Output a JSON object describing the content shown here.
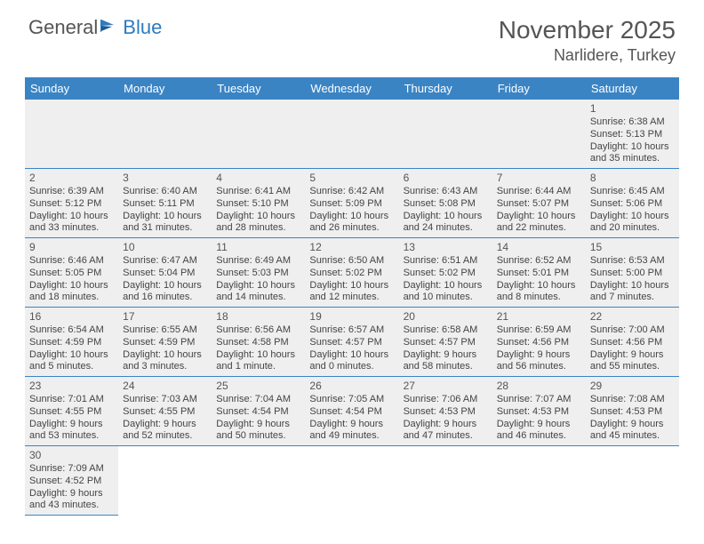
{
  "logo": {
    "textGeneral": "General",
    "textBlue": "Blue"
  },
  "title": "November 2025",
  "location": "Narlidere, Turkey",
  "colors": {
    "headerBlue": "#3b84c4",
    "cellGray": "#efefef",
    "textDark": "#444444",
    "titleGray": "#555555",
    "logoBlue": "#2d7bc0"
  },
  "dayNames": [
    "Sunday",
    "Monday",
    "Tuesday",
    "Wednesday",
    "Thursday",
    "Friday",
    "Saturday"
  ],
  "weeks": [
    [
      {
        "empty": true
      },
      {
        "empty": true
      },
      {
        "empty": true
      },
      {
        "empty": true
      },
      {
        "empty": true
      },
      {
        "empty": true
      },
      {
        "n": "1",
        "sunrise": "Sunrise: 6:38 AM",
        "sunset": "Sunset: 5:13 PM",
        "daylight1": "Daylight: 10 hours",
        "daylight2": "and 35 minutes."
      }
    ],
    [
      {
        "n": "2",
        "sunrise": "Sunrise: 6:39 AM",
        "sunset": "Sunset: 5:12 PM",
        "daylight1": "Daylight: 10 hours",
        "daylight2": "and 33 minutes."
      },
      {
        "n": "3",
        "sunrise": "Sunrise: 6:40 AM",
        "sunset": "Sunset: 5:11 PM",
        "daylight1": "Daylight: 10 hours",
        "daylight2": "and 31 minutes."
      },
      {
        "n": "4",
        "sunrise": "Sunrise: 6:41 AM",
        "sunset": "Sunset: 5:10 PM",
        "daylight1": "Daylight: 10 hours",
        "daylight2": "and 28 minutes."
      },
      {
        "n": "5",
        "sunrise": "Sunrise: 6:42 AM",
        "sunset": "Sunset: 5:09 PM",
        "daylight1": "Daylight: 10 hours",
        "daylight2": "and 26 minutes."
      },
      {
        "n": "6",
        "sunrise": "Sunrise: 6:43 AM",
        "sunset": "Sunset: 5:08 PM",
        "daylight1": "Daylight: 10 hours",
        "daylight2": "and 24 minutes."
      },
      {
        "n": "7",
        "sunrise": "Sunrise: 6:44 AM",
        "sunset": "Sunset: 5:07 PM",
        "daylight1": "Daylight: 10 hours",
        "daylight2": "and 22 minutes."
      },
      {
        "n": "8",
        "sunrise": "Sunrise: 6:45 AM",
        "sunset": "Sunset: 5:06 PM",
        "daylight1": "Daylight: 10 hours",
        "daylight2": "and 20 minutes."
      }
    ],
    [
      {
        "n": "9",
        "sunrise": "Sunrise: 6:46 AM",
        "sunset": "Sunset: 5:05 PM",
        "daylight1": "Daylight: 10 hours",
        "daylight2": "and 18 minutes."
      },
      {
        "n": "10",
        "sunrise": "Sunrise: 6:47 AM",
        "sunset": "Sunset: 5:04 PM",
        "daylight1": "Daylight: 10 hours",
        "daylight2": "and 16 minutes."
      },
      {
        "n": "11",
        "sunrise": "Sunrise: 6:49 AM",
        "sunset": "Sunset: 5:03 PM",
        "daylight1": "Daylight: 10 hours",
        "daylight2": "and 14 minutes."
      },
      {
        "n": "12",
        "sunrise": "Sunrise: 6:50 AM",
        "sunset": "Sunset: 5:02 PM",
        "daylight1": "Daylight: 10 hours",
        "daylight2": "and 12 minutes."
      },
      {
        "n": "13",
        "sunrise": "Sunrise: 6:51 AM",
        "sunset": "Sunset: 5:02 PM",
        "daylight1": "Daylight: 10 hours",
        "daylight2": "and 10 minutes."
      },
      {
        "n": "14",
        "sunrise": "Sunrise: 6:52 AM",
        "sunset": "Sunset: 5:01 PM",
        "daylight1": "Daylight: 10 hours",
        "daylight2": "and 8 minutes."
      },
      {
        "n": "15",
        "sunrise": "Sunrise: 6:53 AM",
        "sunset": "Sunset: 5:00 PM",
        "daylight1": "Daylight: 10 hours",
        "daylight2": "and 7 minutes."
      }
    ],
    [
      {
        "n": "16",
        "sunrise": "Sunrise: 6:54 AM",
        "sunset": "Sunset: 4:59 PM",
        "daylight1": "Daylight: 10 hours",
        "daylight2": "and 5 minutes."
      },
      {
        "n": "17",
        "sunrise": "Sunrise: 6:55 AM",
        "sunset": "Sunset: 4:59 PM",
        "daylight1": "Daylight: 10 hours",
        "daylight2": "and 3 minutes."
      },
      {
        "n": "18",
        "sunrise": "Sunrise: 6:56 AM",
        "sunset": "Sunset: 4:58 PM",
        "daylight1": "Daylight: 10 hours",
        "daylight2": "and 1 minute."
      },
      {
        "n": "19",
        "sunrise": "Sunrise: 6:57 AM",
        "sunset": "Sunset: 4:57 PM",
        "daylight1": "Daylight: 10 hours",
        "daylight2": "and 0 minutes."
      },
      {
        "n": "20",
        "sunrise": "Sunrise: 6:58 AM",
        "sunset": "Sunset: 4:57 PM",
        "daylight1": "Daylight: 9 hours",
        "daylight2": "and 58 minutes."
      },
      {
        "n": "21",
        "sunrise": "Sunrise: 6:59 AM",
        "sunset": "Sunset: 4:56 PM",
        "daylight1": "Daylight: 9 hours",
        "daylight2": "and 56 minutes."
      },
      {
        "n": "22",
        "sunrise": "Sunrise: 7:00 AM",
        "sunset": "Sunset: 4:56 PM",
        "daylight1": "Daylight: 9 hours",
        "daylight2": "and 55 minutes."
      }
    ],
    [
      {
        "n": "23",
        "sunrise": "Sunrise: 7:01 AM",
        "sunset": "Sunset: 4:55 PM",
        "daylight1": "Daylight: 9 hours",
        "daylight2": "and 53 minutes."
      },
      {
        "n": "24",
        "sunrise": "Sunrise: 7:03 AM",
        "sunset": "Sunset: 4:55 PM",
        "daylight1": "Daylight: 9 hours",
        "daylight2": "and 52 minutes."
      },
      {
        "n": "25",
        "sunrise": "Sunrise: 7:04 AM",
        "sunset": "Sunset: 4:54 PM",
        "daylight1": "Daylight: 9 hours",
        "daylight2": "and 50 minutes."
      },
      {
        "n": "26",
        "sunrise": "Sunrise: 7:05 AM",
        "sunset": "Sunset: 4:54 PM",
        "daylight1": "Daylight: 9 hours",
        "daylight2": "and 49 minutes."
      },
      {
        "n": "27",
        "sunrise": "Sunrise: 7:06 AM",
        "sunset": "Sunset: 4:53 PM",
        "daylight1": "Daylight: 9 hours",
        "daylight2": "and 47 minutes."
      },
      {
        "n": "28",
        "sunrise": "Sunrise: 7:07 AM",
        "sunset": "Sunset: 4:53 PM",
        "daylight1": "Daylight: 9 hours",
        "daylight2": "and 46 minutes."
      },
      {
        "n": "29",
        "sunrise": "Sunrise: 7:08 AM",
        "sunset": "Sunset: 4:53 PM",
        "daylight1": "Daylight: 9 hours",
        "daylight2": "and 45 minutes."
      }
    ],
    [
      {
        "n": "30",
        "sunrise": "Sunrise: 7:09 AM",
        "sunset": "Sunset: 4:52 PM",
        "daylight1": "Daylight: 9 hours",
        "daylight2": "and 43 minutes."
      },
      {
        "trailing": true
      },
      {
        "trailing": true
      },
      {
        "trailing": true
      },
      {
        "trailing": true
      },
      {
        "trailing": true
      },
      {
        "trailing": true
      }
    ]
  ]
}
